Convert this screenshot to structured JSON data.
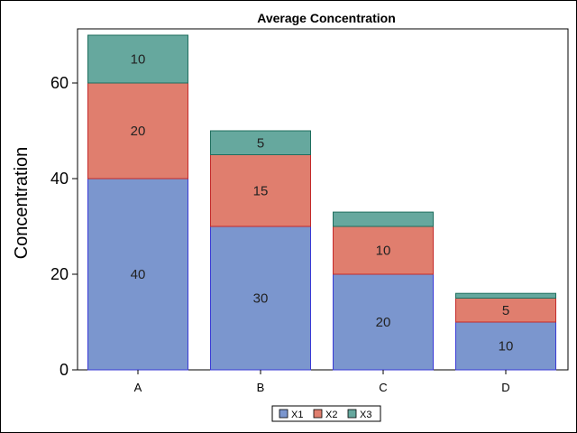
{
  "chart_data": {
    "type": "bar",
    "stacked": true,
    "title": "Average Concentration",
    "xlabel": "",
    "ylabel": "Concentration",
    "categories": [
      "A",
      "B",
      "C",
      "D"
    ],
    "series": [
      {
        "name": "X1",
        "values": [
          40,
          30,
          20,
          10
        ],
        "color": "#7B96CE",
        "edge": "#3A3AD6"
      },
      {
        "name": "X2",
        "values": [
          20,
          15,
          10,
          5
        ],
        "color": "#E07E6E",
        "edge": "#C42A2A"
      },
      {
        "name": "X3",
        "values": [
          10,
          5,
          3,
          1
        ],
        "color": "#66A89E",
        "edge": "#1F6E5E"
      }
    ],
    "data_labels": [
      [
        "40",
        "30",
        "20",
        "10"
      ],
      [
        "20",
        "15",
        "10",
        "5"
      ],
      [
        "10",
        "5",
        "",
        ""
      ]
    ],
    "ylim": [
      0,
      70
    ],
    "yticks": [
      "0",
      "20",
      "40",
      "60"
    ],
    "legend_position": "bottom-center",
    "grid": false
  }
}
